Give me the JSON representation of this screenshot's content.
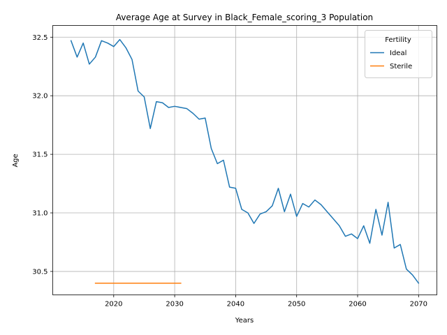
{
  "chart_data": {
    "type": "line",
    "title": "Average Age at Survey in Black_Female_scoring_3 Population",
    "xlabel": "Years",
    "ylabel": "Age",
    "xlim": [
      2010,
      2073
    ],
    "ylim": [
      30.3,
      32.6
    ],
    "xticks": [
      2020,
      2030,
      2040,
      2050,
      2060,
      2070
    ],
    "yticks": [
      30.5,
      31.0,
      31.5,
      32.0,
      32.5
    ],
    "grid": true,
    "legend": {
      "title": "Fertility",
      "placement": "top-right"
    },
    "series": [
      {
        "name": "Ideal",
        "color": "#1f77b4",
        "x": [
          2013,
          2014,
          2015,
          2016,
          2017,
          2018,
          2019,
          2020,
          2021,
          2022,
          2023,
          2024,
          2025,
          2026,
          2027,
          2028,
          2029,
          2030,
          2031,
          2032,
          2033,
          2034,
          2035,
          2036,
          2037,
          2038,
          2039,
          2040,
          2041,
          2042,
          2043,
          2044,
          2045,
          2046,
          2047,
          2048,
          2049,
          2050,
          2051,
          2052,
          2053,
          2054,
          2055,
          2056,
          2057,
          2058,
          2059,
          2060,
          2061,
          2062,
          2063,
          2064,
          2065,
          2066,
          2067,
          2068,
          2069,
          2070
        ],
        "y": [
          32.47,
          32.33,
          32.45,
          32.27,
          32.33,
          32.47,
          32.45,
          32.42,
          32.48,
          32.41,
          32.31,
          32.04,
          31.99,
          31.72,
          31.95,
          31.94,
          31.9,
          31.91,
          31.9,
          31.89,
          31.85,
          31.8,
          31.81,
          31.55,
          31.42,
          31.45,
          31.22,
          31.21,
          31.03,
          31.0,
          30.91,
          30.99,
          31.01,
          31.06,
          31.21,
          31.01,
          31.16,
          30.97,
          31.08,
          31.05,
          31.11,
          31.07,
          31.01,
          30.95,
          30.89,
          30.8,
          30.82,
          30.78,
          30.89,
          30.74,
          31.03,
          30.81,
          31.09,
          30.7,
          30.73,
          30.52,
          30.47,
          30.4
        ]
      },
      {
        "name": "Sterile",
        "color": "#ff7f0e",
        "x": [
          2017,
          2018,
          2019,
          2020,
          2021,
          2022,
          2023,
          2024,
          2025,
          2026,
          2027,
          2028,
          2029,
          2030,
          2031
        ],
        "y": [
          30.4,
          30.4,
          30.4,
          30.4,
          30.4,
          30.4,
          30.4,
          30.4,
          30.4,
          30.4,
          30.4,
          30.4,
          30.4,
          30.4,
          30.4
        ]
      }
    ]
  }
}
